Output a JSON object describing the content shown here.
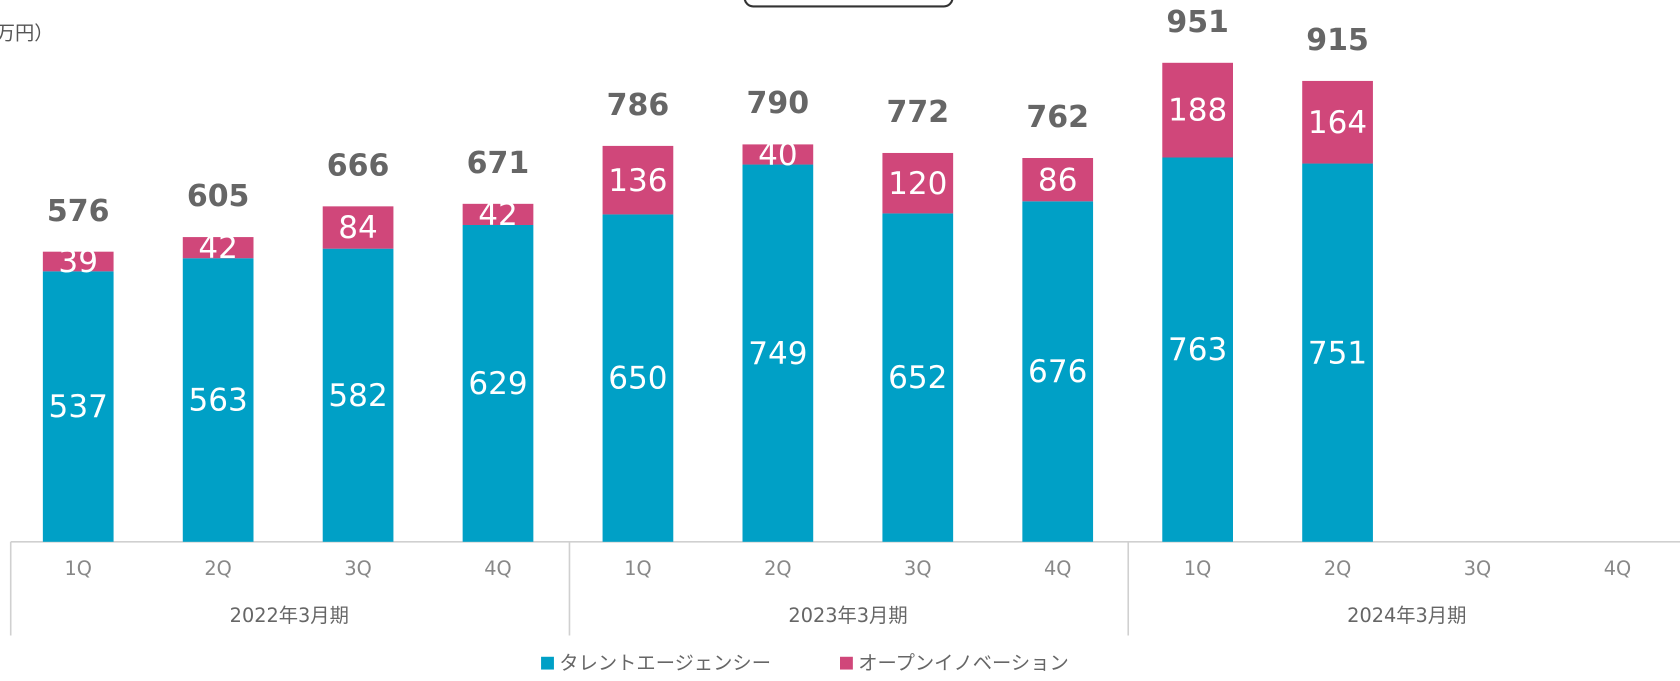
{
  "chart_data": {
    "type": "stacked-bar",
    "unit_label": "万円）",
    "groups": [
      {
        "name": "2022年3月期",
        "categories": [
          "1Q",
          "2Q",
          "3Q",
          "4Q"
        ]
      },
      {
        "name": "2023年3月期",
        "categories": [
          "1Q",
          "2Q",
          "3Q",
          "4Q"
        ]
      },
      {
        "name": "2024年3月期",
        "categories": [
          "1Q",
          "2Q",
          "3Q",
          "4Q"
        ]
      }
    ],
    "series": [
      {
        "name": "タレントエージェンシー",
        "color": "#00a0c6",
        "values": [
          537,
          563,
          582,
          629,
          650,
          749,
          652,
          676,
          763,
          751,
          null,
          null
        ]
      },
      {
        "name": "オープンイノベーション",
        "color": "#d0477a",
        "values": [
          39,
          42,
          84,
          42,
          136,
          40,
          120,
          86,
          188,
          164,
          null,
          null
        ]
      }
    ],
    "totals": [
      576,
      605,
      666,
      671,
      786,
      790,
      772,
      762,
      951,
      915,
      null,
      null
    ]
  }
}
